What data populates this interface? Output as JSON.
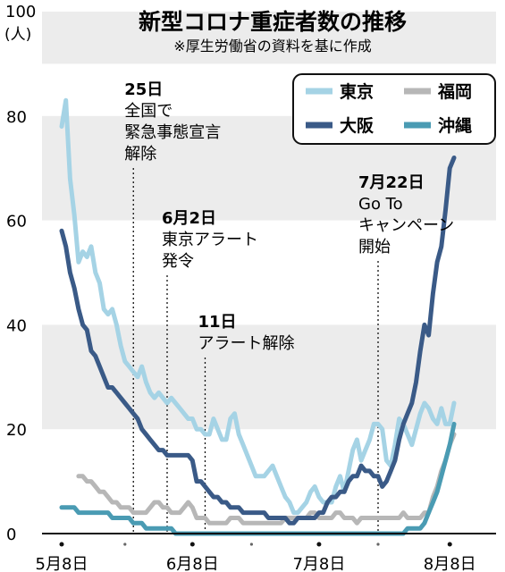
{
  "chart_data": {
    "type": "line",
    "title": "新型コロナ重症者数の推移",
    "subtitle": "※厚生労働省の資料を基に作成",
    "y_unit_top": "100",
    "y_unit_label": "(人)",
    "ylim": [
      0,
      100
    ],
    "yticks": [
      "0",
      "20",
      "40",
      "60",
      "80"
    ],
    "xlim": [
      0,
      93
    ],
    "xticks": [
      {
        "label": "5月8日",
        "x": 0
      },
      {
        "label": "6月8日",
        "x": 31
      },
      {
        "label": "7月8日",
        "x": 61
      },
      {
        "label": "8月8日",
        "x": 92
      }
    ],
    "grid_bands": true,
    "legend": {
      "position": "top-right",
      "entries": [
        {
          "name": "東京",
          "color": "#a5d3e5"
        },
        {
          "name": "福岡",
          "color": "#b7b7b7"
        },
        {
          "name": "大阪",
          "color": "#3a5a87"
        },
        {
          "name": "沖縄",
          "color": "#4a9bb3"
        }
      ]
    },
    "annotations": [
      {
        "x": 17,
        "lines": [
          "25日",
          "全国で",
          "緊急事態宣言",
          "解除"
        ]
      },
      {
        "x": 25,
        "lines": [
          "6月2日",
          "東京アラート",
          "発令"
        ]
      },
      {
        "x": 34,
        "lines": [
          "11日",
          "アラート解除"
        ]
      },
      {
        "x": 75,
        "lines": [
          "7月22日",
          "Go To",
          "キャンペーン",
          "開始"
        ]
      }
    ],
    "series": [
      {
        "name": "東京",
        "color": "#a5d3e5",
        "x": [
          0,
          1,
          2,
          3,
          4,
          5,
          6,
          7,
          8,
          9,
          10,
          11,
          12,
          13,
          14,
          15,
          16,
          17,
          18,
          19,
          20,
          21,
          22,
          23,
          24,
          25,
          26,
          27,
          28,
          29,
          30,
          31,
          32,
          33,
          34,
          35,
          36,
          37,
          38,
          39,
          40,
          41,
          42,
          43,
          44,
          45,
          46,
          47,
          48,
          49,
          50,
          51,
          52,
          53,
          54,
          55,
          56,
          57,
          58,
          59,
          60,
          61,
          62,
          63,
          64,
          65,
          66,
          67,
          68,
          69,
          70,
          71,
          72,
          73,
          74,
          75,
          76,
          77,
          78,
          79,
          80,
          81,
          82,
          83,
          84,
          85,
          86,
          87,
          88,
          89,
          90,
          91,
          92,
          93
        ],
        "y": [
          78,
          83,
          68,
          61,
          52,
          54,
          53,
          55,
          50,
          48,
          43,
          42,
          43,
          40,
          36,
          33,
          32,
          31,
          30,
          32,
          29,
          27,
          26,
          27,
          26,
          25,
          26,
          25,
          24,
          23,
          22,
          22,
          20,
          20,
          19,
          19,
          22,
          20,
          18,
          18,
          22,
          23,
          19,
          17,
          15,
          13,
          11,
          11,
          11,
          12,
          13,
          11,
          9,
          7,
          6,
          4,
          4,
          5,
          6,
          8,
          9,
          7,
          6,
          6,
          6,
          9,
          11,
          8,
          12,
          16,
          18,
          14,
          16,
          18,
          21,
          21,
          20,
          14,
          13,
          17,
          22,
          21,
          19,
          17,
          20,
          23,
          25,
          24,
          22,
          21,
          24,
          21,
          21,
          25
        ]
      },
      {
        "name": "大阪",
        "color": "#3a5a87",
        "x": [
          0,
          1,
          2,
          3,
          4,
          5,
          6,
          7,
          8,
          9,
          10,
          11,
          12,
          13,
          14,
          15,
          16,
          17,
          18,
          19,
          20,
          21,
          22,
          23,
          24,
          25,
          26,
          27,
          28,
          29,
          30,
          31,
          32,
          33,
          34,
          35,
          36,
          37,
          38,
          39,
          40,
          41,
          42,
          43,
          44,
          45,
          46,
          47,
          48,
          49,
          50,
          51,
          52,
          53,
          54,
          55,
          56,
          57,
          58,
          59,
          60,
          61,
          62,
          63,
          64,
          65,
          66,
          67,
          68,
          69,
          70,
          71,
          72,
          73,
          74,
          75,
          76,
          77,
          78,
          79,
          80,
          81,
          82,
          83,
          84,
          85,
          86,
          87,
          88,
          89,
          90,
          91,
          92,
          93
        ],
        "y": [
          58,
          55,
          50,
          47,
          43,
          40,
          39,
          35,
          34,
          32,
          30,
          28,
          28,
          27,
          26,
          25,
          24,
          23,
          22,
          20,
          19,
          18,
          17,
          16,
          16,
          15,
          15,
          15,
          15,
          15,
          15,
          14,
          10,
          10,
          9,
          8,
          7,
          7,
          6,
          6,
          5,
          5,
          5,
          4,
          4,
          4,
          4,
          4,
          4,
          3,
          3,
          3,
          3,
          3,
          2,
          2,
          3,
          3,
          3,
          3,
          3,
          4,
          4,
          6,
          7,
          7,
          8,
          8,
          10,
          11,
          11,
          13,
          12,
          12,
          11,
          11,
          9,
          10,
          12,
          14,
          18,
          21,
          23,
          25,
          29,
          35,
          40,
          38,
          46,
          52,
          55,
          62,
          70,
          72
        ]
      },
      {
        "name": "福岡",
        "color": "#b7b7b7",
        "x": [
          0,
          1,
          2,
          3,
          4,
          5,
          6,
          7,
          8,
          9,
          10,
          11,
          12,
          13,
          14,
          15,
          16,
          17,
          18,
          19,
          20,
          21,
          22,
          23,
          24,
          25,
          26,
          27,
          28,
          29,
          30,
          31,
          32,
          33,
          34,
          35,
          36,
          37,
          38,
          39,
          40,
          41,
          42,
          43,
          44,
          45,
          46,
          47,
          48,
          49,
          50,
          51,
          52,
          53,
          54,
          55,
          56,
          57,
          58,
          59,
          60,
          61,
          62,
          63,
          64,
          65,
          66,
          67,
          68,
          69,
          70,
          71,
          72,
          73,
          74,
          75,
          76,
          77,
          78,
          79,
          80,
          81,
          82,
          83,
          84,
          85,
          86,
          87,
          88,
          89,
          90,
          91,
          92,
          93
        ],
        "y": [
          null,
          null,
          null,
          null,
          11,
          11,
          10,
          10,
          9,
          8,
          8,
          7,
          6,
          6,
          5,
          5,
          5,
          4,
          4,
          4,
          4,
          5,
          6,
          6,
          5,
          5,
          4,
          4,
          4,
          5,
          6,
          5,
          3,
          3,
          3,
          2,
          2,
          2,
          2,
          2,
          3,
          3,
          3,
          2,
          2,
          2,
          2,
          2,
          2,
          2,
          2,
          2,
          2,
          3,
          3,
          3,
          3,
          3,
          3,
          4,
          4,
          3,
          3,
          3,
          3,
          4,
          4,
          3,
          3,
          3,
          2,
          3,
          3,
          3,
          3,
          3,
          3,
          3,
          3,
          3,
          3,
          4,
          3,
          3,
          3,
          3,
          4,
          4,
          7,
          9,
          12,
          14,
          17,
          19
        ]
      },
      {
        "name": "沖縄",
        "color": "#4a9bb3",
        "x": [
          0,
          1,
          2,
          3,
          4,
          5,
          6,
          7,
          8,
          9,
          10,
          11,
          12,
          13,
          14,
          15,
          16,
          17,
          18,
          19,
          20,
          21,
          22,
          23,
          24,
          25,
          26,
          27,
          28,
          29,
          30,
          31,
          32,
          33,
          34,
          35,
          36,
          37,
          38,
          39,
          40,
          41,
          42,
          43,
          44,
          45,
          46,
          47,
          48,
          49,
          50,
          51,
          52,
          53,
          54,
          55,
          56,
          57,
          58,
          59,
          60,
          61,
          62,
          63,
          64,
          65,
          66,
          67,
          68,
          69,
          70,
          71,
          72,
          73,
          74,
          75,
          76,
          77,
          78,
          79,
          80,
          81,
          82,
          83,
          84,
          85,
          86,
          87,
          88,
          89,
          90,
          91,
          92,
          93
        ],
        "y": [
          5,
          5,
          5,
          5,
          4,
          4,
          4,
          4,
          4,
          4,
          4,
          4,
          3,
          3,
          3,
          3,
          3,
          2,
          2,
          2,
          1,
          1,
          1,
          1,
          1,
          1,
          1,
          0,
          0,
          0,
          0,
          0,
          0,
          0,
          0,
          0,
          0,
          0,
          0,
          0,
          0,
          0,
          0,
          0,
          0,
          0,
          0,
          0,
          0,
          0,
          0,
          0,
          0,
          0,
          0,
          0,
          0,
          0,
          0,
          0,
          0,
          0,
          0,
          0,
          0,
          0,
          0,
          0,
          0,
          0,
          0,
          0,
          0,
          0,
          0,
          0,
          0,
          0,
          0,
          0,
          0,
          0,
          1,
          1,
          1,
          1,
          2,
          4,
          6,
          8,
          11,
          14,
          17,
          21
        ]
      }
    ]
  }
}
